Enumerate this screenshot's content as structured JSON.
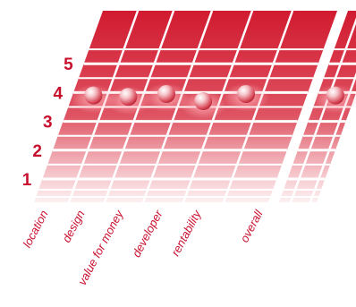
{
  "chart_data": {
    "type": "scatter",
    "title": "",
    "xlabel": "",
    "ylabel": "",
    "ylim": [
      1,
      5
    ],
    "yticks": [
      "1",
      "2",
      "3",
      "4",
      "5"
    ],
    "categories": [
      "location",
      "design",
      "value for money",
      "developer",
      "rentability",
      "overall"
    ],
    "values": [
      3.9,
      3.85,
      3.95,
      3.7,
      3.95,
      3.9
    ],
    "grid": true,
    "colors": {
      "accent": "#c8102e",
      "tick_label": "#c8102e"
    }
  }
}
